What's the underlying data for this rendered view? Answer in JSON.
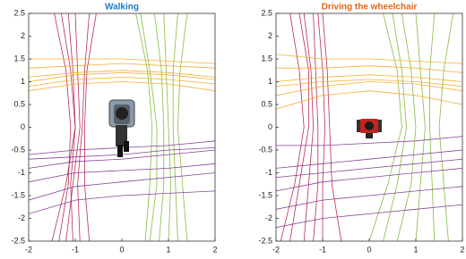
{
  "chart_data": [
    {
      "type": "line",
      "title": "Walking",
      "title_color": "#1f7ac8",
      "xlim": [
        -2,
        2
      ],
      "ylim": [
        -2.5,
        2.5
      ],
      "xticks": [
        -2,
        -1,
        0,
        1,
        2
      ],
      "yticks": [
        -2.5,
        -2,
        -1.5,
        -1,
        -0.5,
        0,
        0.5,
        1,
        1.5,
        2,
        2.5
      ],
      "series": [
        {
          "color": "#b3173f",
          "x": [
            -1.5,
            -1.2,
            -1.0,
            -1.1,
            -1.3
          ],
          "y": [
            -2.5,
            -1.25,
            0,
            1.25,
            2.5
          ]
        },
        {
          "color": "#b3173f",
          "x": [
            -1.2,
            -1.05,
            -0.9,
            -0.95,
            -1.0
          ],
          "y": [
            -2.5,
            -1.25,
            0,
            1.25,
            2.5
          ]
        },
        {
          "color": "#b3173f",
          "x": [
            -0.9,
            -0.95,
            -0.85,
            -0.8,
            -0.7
          ],
          "y": [
            -2.5,
            -1.25,
            0,
            1.25,
            2.5
          ]
        },
        {
          "color": "#b3173f",
          "x": [
            -1.35,
            -1.15,
            -1.1,
            -1.2,
            -1.45
          ],
          "y": [
            -2.5,
            -1.25,
            0,
            1.25,
            2.5
          ]
        },
        {
          "color": "#b3173f",
          "x": [
            -0.7,
            -0.8,
            -0.8,
            -0.75,
            -0.55
          ],
          "y": [
            -2.5,
            -1.25,
            0,
            1.25,
            2.5
          ]
        },
        {
          "color": "#b3173f",
          "x": [
            -1.05,
            -1.1,
            -1.0,
            -1.05,
            -1.15
          ],
          "y": [
            -2.5,
            -1.25,
            0,
            1.25,
            2.5
          ]
        },
        {
          "color": "#7ab52e",
          "x": [
            0.6,
            0.75,
            0.75,
            0.6,
            0.4
          ],
          "y": [
            -2.5,
            -1.25,
            0,
            1.25,
            2.5
          ]
        },
        {
          "color": "#7ab52e",
          "x": [
            0.8,
            0.9,
            0.9,
            0.85,
            0.7
          ],
          "y": [
            -2.5,
            -1.25,
            0,
            1.25,
            2.5
          ]
        },
        {
          "color": "#7ab52e",
          "x": [
            1.0,
            1.05,
            1.0,
            0.95,
            0.9
          ],
          "y": [
            -2.5,
            -1.25,
            0,
            1.25,
            2.5
          ]
        },
        {
          "color": "#7ab52e",
          "x": [
            1.2,
            1.15,
            1.1,
            1.1,
            1.2
          ],
          "y": [
            -2.5,
            -1.25,
            0,
            1.25,
            2.5
          ]
        },
        {
          "color": "#7ab52e",
          "x": [
            0.5,
            0.6,
            0.65,
            0.55,
            0.3
          ],
          "y": [
            -2.5,
            -1.25,
            0,
            1.25,
            2.5
          ]
        },
        {
          "color": "#7ab52e",
          "x": [
            1.4,
            1.3,
            1.2,
            1.25,
            1.4
          ],
          "y": [
            -2.5,
            -1.25,
            0,
            1.25,
            2.5
          ]
        },
        {
          "color": "#f2a81d",
          "x": [
            -2,
            -1,
            0,
            1,
            2
          ],
          "y": [
            1.1,
            1.2,
            1.25,
            1.2,
            1.1
          ]
        },
        {
          "color": "#f2a81d",
          "x": [
            -2,
            -1,
            0,
            1,
            2
          ],
          "y": [
            0.9,
            1.05,
            1.1,
            1.05,
            0.95
          ]
        },
        {
          "color": "#f2a81d",
          "x": [
            -2,
            -1,
            0,
            1,
            2
          ],
          "y": [
            1.3,
            1.35,
            1.4,
            1.35,
            1.3
          ]
        },
        {
          "color": "#f2a81d",
          "x": [
            -2,
            -1,
            0,
            1,
            2
          ],
          "y": [
            1.5,
            1.5,
            1.5,
            1.45,
            1.4
          ]
        },
        {
          "color": "#f2a81d",
          "x": [
            -2,
            -1,
            0,
            1,
            2
          ],
          "y": [
            0.8,
            0.95,
            1.0,
            0.95,
            0.8
          ]
        },
        {
          "color": "#f2a81d",
          "x": [
            -2,
            -1,
            0,
            1,
            2
          ],
          "y": [
            1.0,
            1.15,
            1.2,
            1.15,
            1.05
          ]
        },
        {
          "color": "#7b2d8e",
          "x": [
            -2,
            -1,
            0,
            1,
            2
          ],
          "y": [
            -0.6,
            -0.5,
            -0.45,
            -0.4,
            -0.3
          ]
        },
        {
          "color": "#7b2d8e",
          "x": [
            -2,
            -1,
            0,
            1,
            2
          ],
          "y": [
            -0.9,
            -0.75,
            -0.7,
            -0.6,
            -0.5
          ]
        },
        {
          "color": "#7b2d8e",
          "x": [
            -2,
            -1,
            0,
            1,
            2
          ],
          "y": [
            -1.2,
            -1.0,
            -0.95,
            -0.9,
            -0.8
          ]
        },
        {
          "color": "#7b2d8e",
          "x": [
            -2,
            -1,
            0,
            1,
            2
          ],
          "y": [
            -1.6,
            -1.3,
            -1.2,
            -1.1,
            -1.0
          ]
        },
        {
          "color": "#7b2d8e",
          "x": [
            -2,
            -1,
            0,
            1,
            2
          ],
          "y": [
            -1.9,
            -1.6,
            -1.5,
            -1.45,
            -1.4
          ]
        },
        {
          "color": "#7b2d8e",
          "x": [
            -2,
            -1,
            0,
            1,
            2
          ],
          "y": [
            -0.7,
            -0.65,
            -0.6,
            -0.5,
            -0.45
          ]
        }
      ]
    },
    {
      "type": "line",
      "title": "Driving the wheelchair",
      "title_color": "#e0661c",
      "xlim": [
        -2,
        2
      ],
      "ylim": [
        -2.5,
        2.5
      ],
      "xticks": [
        -2,
        -1,
        0,
        1,
        2
      ],
      "yticks": [
        -2.5,
        -2,
        -1.5,
        -1,
        -0.5,
        0,
        0.5,
        1,
        1.5,
        2,
        2.5
      ],
      "series": [
        {
          "color": "#b3173f",
          "x": [
            -1.9,
            -1.6,
            -1.4,
            -1.5,
            -1.7
          ],
          "y": [
            -2.5,
            -1.25,
            0,
            1.25,
            2.5
          ]
        },
        {
          "color": "#b3173f",
          "x": [
            -1.4,
            -1.3,
            -1.2,
            -1.25,
            -1.4
          ],
          "y": [
            -2.5,
            -1.25,
            0,
            1.25,
            2.5
          ]
        },
        {
          "color": "#b3173f",
          "x": [
            -1.0,
            -1.0,
            -0.95,
            -1.0,
            -1.1
          ],
          "y": [
            -2.5,
            -1.25,
            0,
            1.25,
            2.5
          ]
        },
        {
          "color": "#b3173f",
          "x": [
            -0.6,
            -0.8,
            -0.85,
            -0.9,
            -1.0
          ],
          "y": [
            -2.5,
            -1.25,
            0,
            1.25,
            2.5
          ]
        },
        {
          "color": "#b3173f",
          "x": [
            -1.7,
            -1.5,
            -1.3,
            -1.3,
            -1.5
          ],
          "y": [
            -2.5,
            -1.25,
            0,
            1.25,
            2.5
          ]
        },
        {
          "color": "#b3173f",
          "x": [
            -1.2,
            -1.1,
            -1.1,
            -1.15,
            -1.2
          ],
          "y": [
            -2.5,
            -1.25,
            0,
            1.25,
            2.5
          ]
        },
        {
          "color": "#7ab52e",
          "x": [
            0.3,
            0.6,
            0.8,
            0.7,
            0.5
          ],
          "y": [
            -2.5,
            -1.25,
            0,
            1.25,
            2.5
          ]
        },
        {
          "color": "#7ab52e",
          "x": [
            0.6,
            0.9,
            1.0,
            0.9,
            0.7
          ],
          "y": [
            -2.5,
            -1.25,
            0,
            1.25,
            2.5
          ]
        },
        {
          "color": "#7ab52e",
          "x": [
            1.0,
            1.1,
            1.2,
            1.1,
            1.0
          ],
          "y": [
            -2.5,
            -1.25,
            0,
            1.25,
            2.5
          ]
        },
        {
          "color": "#7ab52e",
          "x": [
            1.4,
            1.35,
            1.3,
            1.3,
            1.4
          ],
          "y": [
            -2.5,
            -1.25,
            0,
            1.25,
            2.5
          ]
        },
        {
          "color": "#7ab52e",
          "x": [
            0.0,
            0.4,
            0.7,
            0.6,
            0.3
          ],
          "y": [
            -2.5,
            -1.25,
            0,
            1.25,
            2.5
          ]
        },
        {
          "color": "#7ab52e",
          "x": [
            1.7,
            1.6,
            1.5,
            1.6,
            1.8
          ],
          "y": [
            -2.5,
            -1.25,
            0,
            1.25,
            2.5
          ]
        },
        {
          "color": "#f2a81d",
          "x": [
            -2,
            -1,
            0,
            1,
            2
          ],
          "y": [
            0.4,
            0.7,
            0.8,
            0.7,
            0.5
          ]
        },
        {
          "color": "#f2a81d",
          "x": [
            -2,
            -1,
            0,
            1,
            2
          ],
          "y": [
            0.7,
            0.9,
            1.0,
            0.95,
            0.8
          ]
        },
        {
          "color": "#f2a81d",
          "x": [
            -2,
            -1,
            0,
            1,
            2
          ],
          "y": [
            1.0,
            1.1,
            1.15,
            1.1,
            1.0
          ]
        },
        {
          "color": "#f2a81d",
          "x": [
            -2,
            -1,
            0,
            1,
            2
          ],
          "y": [
            1.3,
            1.3,
            1.35,
            1.3,
            1.2
          ]
        },
        {
          "color": "#f2a81d",
          "x": [
            -2,
            -1,
            0,
            1,
            2
          ],
          "y": [
            1.6,
            1.5,
            1.5,
            1.45,
            1.4
          ]
        },
        {
          "color": "#f2a81d",
          "x": [
            -2,
            -1,
            0,
            1,
            2
          ],
          "y": [
            0.9,
            1.0,
            1.05,
            1.0,
            0.9
          ]
        },
        {
          "color": "#7b2d8e",
          "x": [
            -2,
            -1,
            0,
            1,
            2
          ],
          "y": [
            -0.4,
            -0.4,
            -0.35,
            -0.3,
            -0.2
          ]
        },
        {
          "color": "#7b2d8e",
          "x": [
            -2,
            -1,
            0,
            1,
            2
          ],
          "y": [
            -0.9,
            -0.8,
            -0.7,
            -0.6,
            -0.5
          ]
        },
        {
          "color": "#7b2d8e",
          "x": [
            -2,
            -1,
            0,
            1,
            2
          ],
          "y": [
            -1.4,
            -1.2,
            -1.1,
            -1.0,
            -0.9
          ]
        },
        {
          "color": "#7b2d8e",
          "x": [
            -2,
            -1,
            0,
            1,
            2
          ],
          "y": [
            -1.8,
            -1.6,
            -1.5,
            -1.4,
            -1.3
          ]
        },
        {
          "color": "#7b2d8e",
          "x": [
            -2,
            -1,
            0,
            1,
            2
          ],
          "y": [
            -2.2,
            -2.0,
            -1.9,
            -1.8,
            -1.7
          ]
        },
        {
          "color": "#7b2d8e",
          "x": [
            -2,
            -1,
            0,
            1,
            2
          ],
          "y": [
            -1.1,
            -1.0,
            -0.9,
            -0.8,
            -0.7
          ]
        }
      ]
    }
  ]
}
